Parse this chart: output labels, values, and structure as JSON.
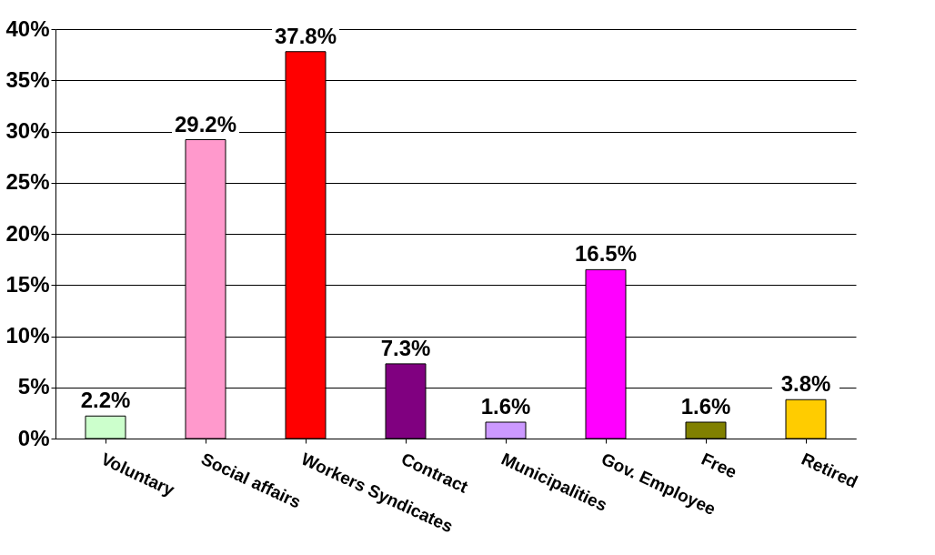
{
  "chart_data": {
    "type": "bar",
    "categories": [
      "Voluntary",
      "Social affairs",
      "Workers Syndicates",
      "Contract",
      "Municipalities",
      "Gov. Employee",
      "Free",
      "Retired"
    ],
    "values": [
      2.2,
      29.2,
      37.8,
      7.3,
      1.6,
      16.5,
      1.6,
      3.8
    ],
    "colors": [
      "#ccffcc",
      "#ff99cc",
      "#ff0000",
      "#800080",
      "#cc99ff",
      "#ff00ff",
      "#808000",
      "#ffcc00"
    ],
    "value_labels": [
      "2.2%",
      "29.2%",
      "37.8%",
      "7.3%",
      "1.6%",
      "16.5%",
      "1.6%",
      "3.8%"
    ],
    "ylim": [
      0,
      40
    ],
    "yticks": [
      {
        "value": 0,
        "label": "0%"
      },
      {
        "value": 5,
        "label": "5%"
      },
      {
        "value": 10,
        "label": "10%"
      },
      {
        "value": 15,
        "label": "15%"
      },
      {
        "value": 20,
        "label": "20%"
      },
      {
        "value": 25,
        "label": "25%"
      },
      {
        "value": 30,
        "label": "30%"
      },
      {
        "value": 35,
        "label": "35%"
      },
      {
        "value": 40,
        "label": "40%"
      }
    ],
    "grid": "y"
  }
}
